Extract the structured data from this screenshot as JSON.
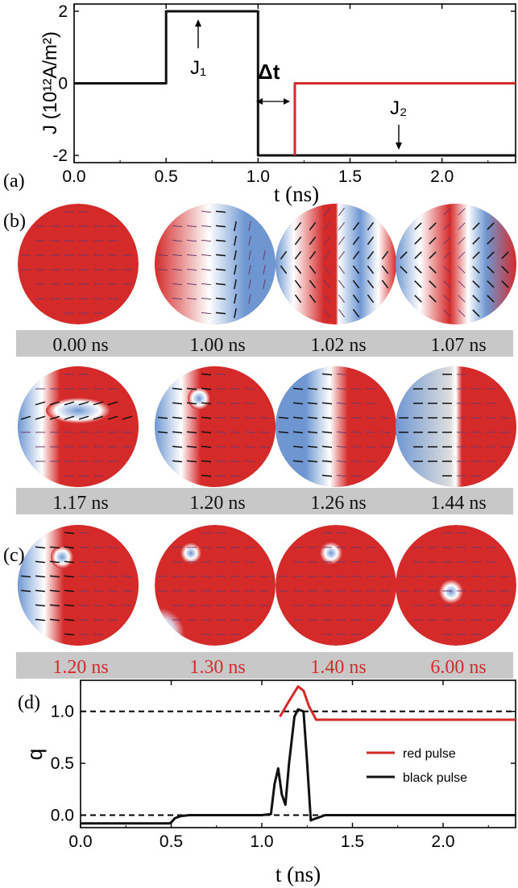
{
  "panel_labels": {
    "a": "(a)",
    "b": "(b)",
    "c": "(c)",
    "d": "(d)"
  },
  "colors": {
    "red": "#d42a2a",
    "black": "#111111",
    "blue": "#6e97d2",
    "gray_bar": "#c8c8c8"
  },
  "chart_data": [
    {
      "type": "line",
      "xlabel": "t (ns)",
      "ylabel": "J (10¹²A/m²)",
      "xlim": [
        0.0,
        2.4
      ],
      "ylim": [
        -2.2,
        2.2
      ],
      "xticks": [
        "0.0",
        "0.5",
        "1.0",
        "1.5",
        "2.0"
      ],
      "yticks": [
        "-2",
        "0",
        "2"
      ],
      "series": [
        {
          "color": "#111111",
          "x": [
            0,
            0.5,
            0.5,
            1.0,
            1.0,
            2.4
          ],
          "y": [
            0,
            0,
            2,
            2,
            -2,
            -2
          ]
        },
        {
          "color": "#d42a2a",
          "x": [
            1.2,
            1.2,
            2.4
          ],
          "y": [
            -2,
            0,
            0
          ]
        }
      ],
      "annotations": {
        "j1": "J₁",
        "j2": "J₂",
        "delta_t": "Δt"
      }
    },
    {
      "type": "line",
      "xlabel": "t (ns)",
      "ylabel": "q",
      "xlim": [
        0.0,
        2.4
      ],
      "ylim": [
        -0.12,
        1.3
      ],
      "xticks": [
        "0.0",
        "0.5",
        "1.0",
        "1.5",
        "2.0"
      ],
      "yticks": [
        "0.0",
        "0.5",
        "1.0"
      ],
      "reference_lines": [
        0,
        1
      ],
      "series": [
        {
          "name": "red pulse",
          "color": "#d42a2a",
          "x": [
            1.1,
            1.15,
            1.2,
            1.23,
            1.26,
            1.3,
            1.4,
            2.4
          ],
          "y": [
            0.95,
            1.1,
            1.24,
            1.2,
            1.05,
            0.92,
            0.92,
            0.92
          ]
        },
        {
          "name": "black pulse",
          "color": "#111111",
          "x": [
            0,
            0.49,
            0.5,
            0.52,
            0.55,
            0.6,
            1.0,
            1.05,
            1.07,
            1.09,
            1.11,
            1.13,
            1.15,
            1.18,
            1.2,
            1.23,
            1.25,
            1.27,
            1.3,
            1.35,
            1.5,
            2.4
          ],
          "y": [
            -0.08,
            -0.08,
            -0.07,
            -0.03,
            -0.01,
            0,
            0,
            0.01,
            0.3,
            0.45,
            0.2,
            0.1,
            0.5,
            0.95,
            1.02,
            1.0,
            0.5,
            -0.05,
            -0.03,
            0,
            0,
            0
          ]
        }
      ],
      "legend": "right"
    }
  ],
  "snapshots_b": {
    "row1": [
      {
        "label": "0.00 ns",
        "pattern": "uniform"
      },
      {
        "label": "1.00 ns",
        "pattern": "wall-right"
      },
      {
        "label": "1.02 ns",
        "pattern": "stripes"
      },
      {
        "label": "1.07 ns",
        "pattern": "stripes-bent"
      }
    ],
    "row2": [
      {
        "label": "1.17 ns",
        "pattern": "bubble"
      },
      {
        "label": "1.20 ns",
        "pattern": "vortex-left"
      },
      {
        "label": "1.26 ns",
        "pattern": "wall-left"
      },
      {
        "label": "1.44 ns",
        "pattern": "half"
      }
    ]
  },
  "snapshots_c": [
    {
      "label": "1.20 ns",
      "pattern": "vortex-left"
    },
    {
      "label": "1.30 ns",
      "pattern": "skyrmion-top-corner"
    },
    {
      "label": "1.40 ns",
      "pattern": "skyrmion-top"
    },
    {
      "label": "6.00 ns",
      "pattern": "skyrmion-center"
    }
  ]
}
